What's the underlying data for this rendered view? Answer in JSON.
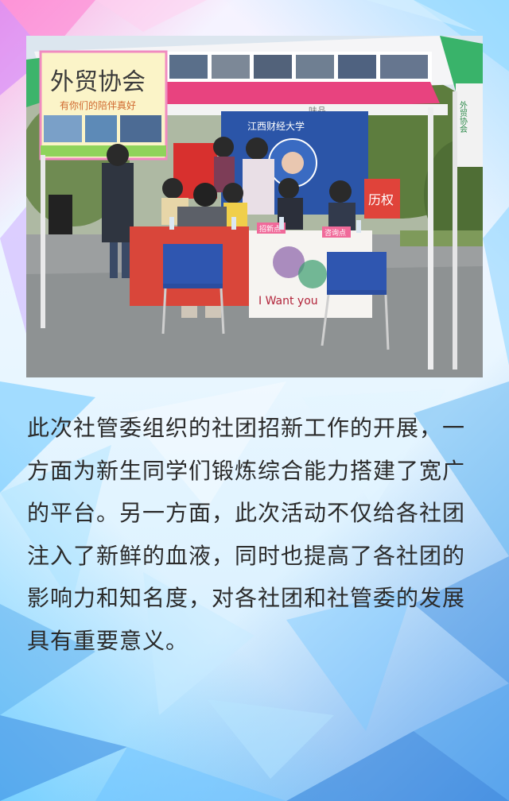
{
  "photo": {
    "sign_title": "外贸协会",
    "sign_subtitle": "有你们的陪伴真好",
    "banner_university": "江西财经大学",
    "banner_right_partial": "历权",
    "tent_text": "味品",
    "desk_placard_1": "招新点",
    "desk_placard_2": "咨询点",
    "poster_caption": "I Want you",
    "side_banner_vertical": "外贸协会"
  },
  "article": {
    "paragraph": "此次社管委组织的社团招新工作的开展，一方面为新生同学们锻炼综合能力搭建了宽广的平台。另一方面，此次活动不仅给各社团注入了新鲜的血液，同时也提高了各社团的影响力和知名度，对各社团和社管委的发展具有重要意义。"
  }
}
